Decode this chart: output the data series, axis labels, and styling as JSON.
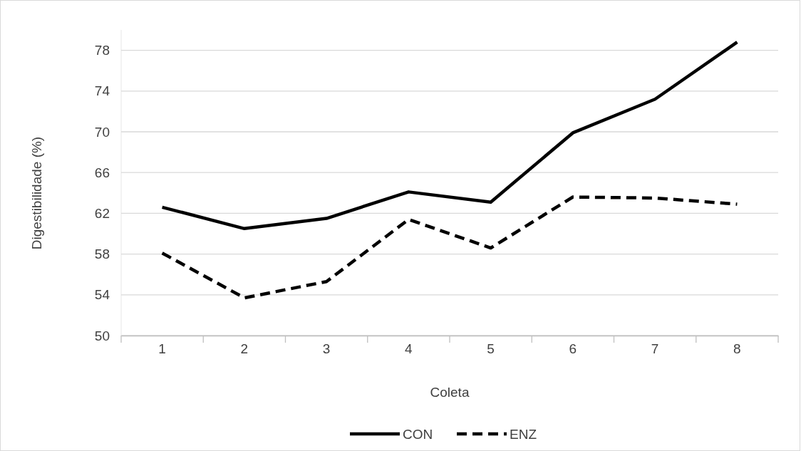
{
  "chart_data": {
    "type": "line",
    "xlabel": "Coleta",
    "ylabel": "Digestibilidade (%)",
    "categories": [
      "1",
      "2",
      "3",
      "4",
      "5",
      "6",
      "7",
      "8"
    ],
    "series": [
      {
        "name": "CON",
        "color": "#000000",
        "line_style": "solid",
        "values": [
          62.6,
          60.5,
          61.5,
          64.1,
          63.1,
          69.9,
          73.2,
          78.8
        ]
      },
      {
        "name": "ENZ",
        "color": "#000000",
        "line_style": "dashed",
        "values": [
          58.1,
          53.7,
          55.3,
          61.4,
          58.6,
          63.6,
          63.5,
          62.9
        ]
      }
    ],
    "ylim": [
      50,
      80
    ],
    "yticks": [
      50,
      54,
      58,
      62,
      66,
      70,
      74,
      78
    ],
    "grid": "y",
    "legend": "bottom"
  }
}
